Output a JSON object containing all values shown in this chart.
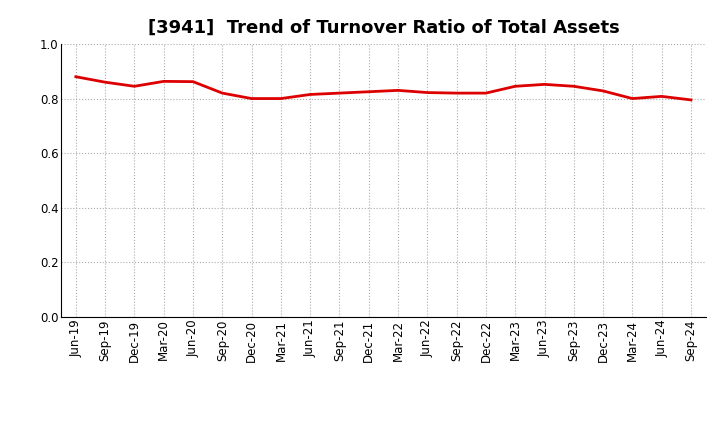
{
  "title": "[3941]  Trend of Turnover Ratio of Total Assets",
  "x_labels": [
    "Jun-19",
    "Sep-19",
    "Dec-19",
    "Mar-20",
    "Jun-20",
    "Sep-20",
    "Dec-20",
    "Mar-21",
    "Jun-21",
    "Sep-21",
    "Dec-21",
    "Mar-22",
    "Jun-22",
    "Sep-22",
    "Dec-22",
    "Mar-23",
    "Jun-23",
    "Sep-23",
    "Dec-23",
    "Mar-24",
    "Jun-24",
    "Sep-24"
  ],
  "values": [
    0.88,
    0.86,
    0.845,
    0.863,
    0.862,
    0.82,
    0.8,
    0.8,
    0.815,
    0.82,
    0.825,
    0.83,
    0.822,
    0.82,
    0.82,
    0.845,
    0.852,
    0.845,
    0.828,
    0.8,
    0.808,
    0.795
  ],
  "line_color": "#dd0000",
  "line_width": 2.0,
  "ylim": [
    0.0,
    1.0
  ],
  "yticks": [
    0.0,
    0.2,
    0.4,
    0.6,
    0.8,
    1.0
  ],
  "background_color": "#ffffff",
  "grid_color": "#aaaaaa",
  "grid_linestyle": ":",
  "title_fontsize": 13,
  "tick_fontsize": 8.5
}
